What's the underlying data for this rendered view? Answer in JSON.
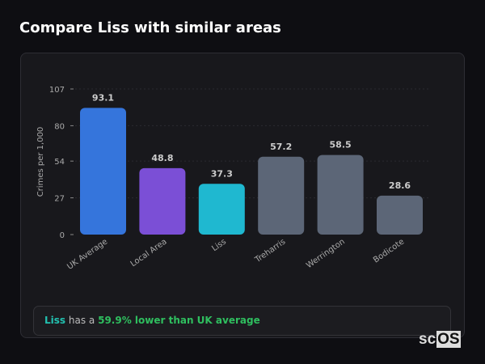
{
  "title": "Compare Liss with similar areas",
  "chart_data": {
    "type": "bar",
    "ylabel": "Crimes per 1,000",
    "ylim": [
      0,
      107
    ],
    "yticks": [
      0,
      27,
      54,
      80,
      107
    ],
    "categories": [
      "UK Average",
      "Local Area",
      "Liss",
      "Treharris",
      "Werrington",
      "Bodicote"
    ],
    "values": [
      93.1,
      48.8,
      37.3,
      57.2,
      58.5,
      28.6
    ],
    "colors": [
      "#3575dc",
      "#7b4fd6",
      "#1fb8d0",
      "#5c6677",
      "#5c6677",
      "#5c6677"
    ],
    "grid": true
  },
  "summary": {
    "area": "Liss",
    "middle": "has a",
    "highlight": "59.9% lower than UK average"
  },
  "logo": {
    "text_a": "sc",
    "text_b": "OS"
  }
}
